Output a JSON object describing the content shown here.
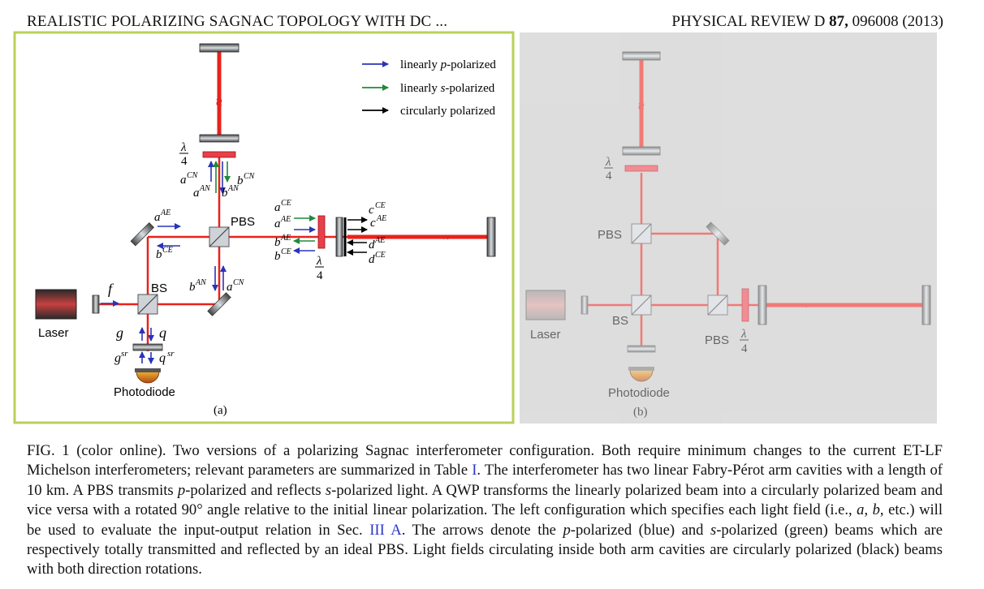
{
  "header": {
    "left": "REALISTIC POLARIZING SAGNAC TOPOLOGY WITH DC ...",
    "journal": "PHYSICAL REVIEW D",
    "volume": "87,",
    "article": "096008 (2013)"
  },
  "legend": {
    "p_prefix": "linearly ",
    "p_pol": "p",
    "p_suffix": "-polarized",
    "s_prefix": "linearly ",
    "s_pol": "s",
    "s_suffix": "-polarized",
    "circular": "circularly polarized"
  },
  "panel_a": {
    "label": "(a)",
    "laser": "Laser",
    "photodiode": "Photodiode",
    "bs": "BS",
    "pbs": "PBS",
    "f": "f",
    "g": "g",
    "q": "q",
    "g_sr": "g",
    "q_sr": "q",
    "sr": "sr",
    "a": "a",
    "b": "b",
    "c": "c",
    "d": "d",
    "CN": "CN",
    "AN": "AN",
    "AE": "AE",
    "CE": "CE",
    "qwp_num": "λ",
    "qwp_den": "4"
  },
  "panel_b": {
    "label": "(b)",
    "laser": "Laser",
    "photodiode": "Photodiode",
    "bs": "BS",
    "pbs_top": "PBS",
    "pbs_bottom": "PBS",
    "qwp_num": "λ",
    "qwp_den": "4"
  },
  "caption": {
    "s1": "FIG. 1 (color online).   Two versions of a polarizing Sagnac interferometer configuration. Both require minimum changes to the current ET-LF Michelson interferometers; relevant parameters are summarized in Table ",
    "ref1": "I",
    "s2": ". The interferometer has two linear Fabry-Pérot arm cavities with a length of 10 km. A PBS transmits ",
    "p1": "p",
    "s3": "-polarized and reflects ",
    "s_1": "s",
    "s4": "-polarized light. A QWP transforms the linearly polarized beam into a circularly polarized beam and vice versa with a rotated 90° angle relative to the initial linear polarization. The left configuration which specifies each light field (i.e., ",
    "a": "a",
    "comma1": ", ",
    "b": "b",
    "s5": ", etc.) will be used to evaluate the input-output relation in Sec. ",
    "ref2": "III A",
    "s6": ". The arrows denote the ",
    "p2": "p",
    "s7": "-polarized (blue) and ",
    "s_2": "s",
    "s8": "-polarized (green) beams which are respectively totally transmitted and reflected by an ideal PBS. Light fields circulating inside both arm cavities are circularly polarized (black) beams with both direction rotations."
  },
  "colors": {
    "beam": "#e8221b",
    "p_polarized": "#2b33b8",
    "s_polarized": "#1e8a3a",
    "circular": "#000000",
    "panel_a_border": "#b9d15a",
    "panel_b_bg": "#d7d7d7"
  }
}
